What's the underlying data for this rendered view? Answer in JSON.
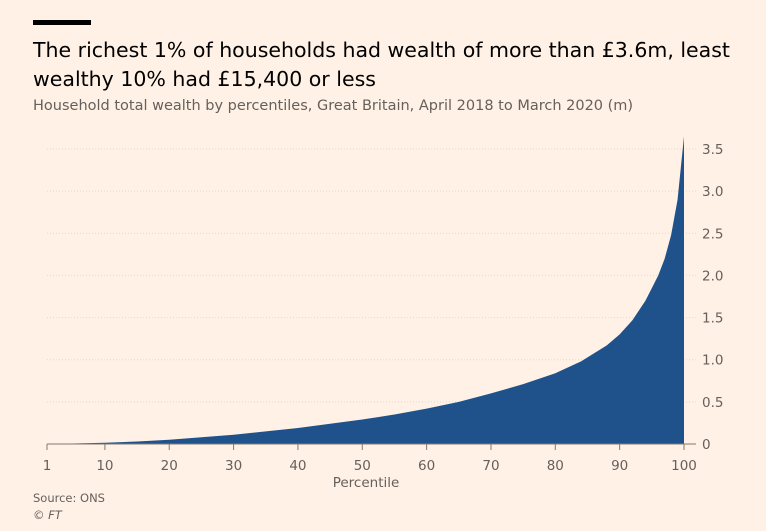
{
  "header": {
    "title": "The richest 1% of households had wealth of more than £3.6m, least wealthy 10% had £15,400 or less",
    "subtitle": "Household total wealth by percentiles, Great Britain, April 2018 to March 2020 (m)"
  },
  "footer": {
    "source": "Source: ONS",
    "copyright": "© FT"
  },
  "chart_data": {
    "type": "area",
    "xlabel": "Percentile",
    "ylabel": "",
    "xlim": [
      1,
      100
    ],
    "ylim": [
      0,
      3.5
    ],
    "x_ticks": [
      1,
      10,
      20,
      30,
      40,
      50,
      60,
      70,
      80,
      90,
      100
    ],
    "x_tick_labels": [
      "1",
      "10",
      "20",
      "30",
      "40",
      "50",
      "60",
      "70",
      "80",
      "90",
      "100"
    ],
    "y_ticks": [
      0,
      0.5,
      1,
      1.5,
      2,
      2.5,
      3,
      3.5
    ],
    "y_tick_labels": [
      "0",
      "0.5",
      "1.0",
      "1.5",
      "2.0",
      "2.5",
      "3.0",
      "3.5"
    ],
    "grid": "horizontal",
    "fill_color": "#1f528a",
    "x": [
      1,
      5,
      10,
      15,
      20,
      25,
      30,
      35,
      40,
      45,
      50,
      55,
      60,
      65,
      70,
      75,
      80,
      84,
      88,
      90,
      92,
      94,
      95,
      96,
      97,
      98,
      99,
      100
    ],
    "values": [
      0.001,
      0.006,
      0.0154,
      0.03,
      0.05,
      0.08,
      0.11,
      0.15,
      0.19,
      0.24,
      0.29,
      0.35,
      0.42,
      0.5,
      0.6,
      0.71,
      0.84,
      0.98,
      1.17,
      1.3,
      1.47,
      1.7,
      1.85,
      2.0,
      2.2,
      2.48,
      2.9,
      3.65
    ]
  }
}
